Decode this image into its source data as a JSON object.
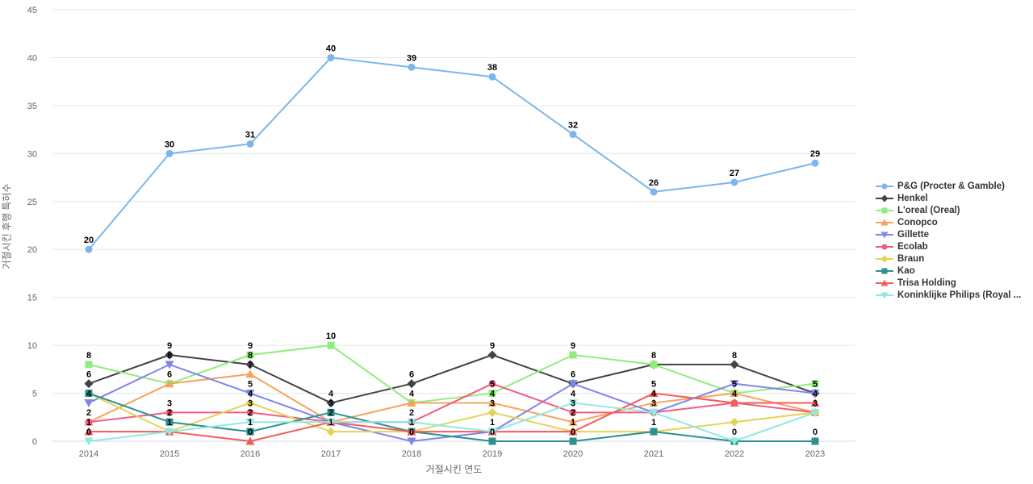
{
  "chart_data": {
    "type": "line",
    "x": [
      2014,
      2015,
      2016,
      2017,
      2018,
      2019,
      2020,
      2021,
      2022,
      2023
    ],
    "xlabel": "거절시킨 연도",
    "ylabel": "거절시킨 후행 특허수",
    "ylim": [
      0,
      45
    ],
    "ytick_step": 5,
    "grid": "horizontal",
    "legend_position": "right-middle",
    "background_color": "#ffffff",
    "gridline_color": "#e6e6e6",
    "axis_line_color": "#ccd6eb",
    "axis_text_color": "#666666",
    "data_label_color": "#000000",
    "series": [
      {
        "name": "P&G (Procter & Gamble)",
        "color": "#7cb5ec",
        "marker": "circle",
        "values": [
          20,
          30,
          31,
          40,
          39,
          38,
          32,
          26,
          27,
          29
        ]
      },
      {
        "name": "Henkel",
        "color": "#434348",
        "marker": "diamond",
        "values": [
          6,
          9,
          8,
          4,
          6,
          9,
          6,
          8,
          8,
          5
        ]
      },
      {
        "name": "L'oreal (Oreal)",
        "color": "#90ed7d",
        "marker": "square",
        "values": [
          8,
          6,
          9,
          10,
          4,
          5,
          9,
          8,
          5,
          6
        ]
      },
      {
        "name": "Conopco",
        "color": "#f7a35c",
        "marker": "triangle",
        "values": [
          2,
          6,
          7,
          2,
          4,
          4,
          2,
          4,
          5,
          3
        ]
      },
      {
        "name": "Gillette",
        "color": "#8085e9",
        "marker": "triangle-down",
        "values": [
          4,
          8,
          5,
          2,
          0,
          1,
          6,
          3,
          6,
          5
        ]
      },
      {
        "name": "Ecolab",
        "color": "#f15c80",
        "marker": "circle",
        "values": [
          2,
          3,
          3,
          2,
          2,
          6,
          3,
          3,
          4,
          3
        ]
      },
      {
        "name": "Braun",
        "color": "#e4d354",
        "marker": "diamond",
        "values": [
          5,
          1,
          4,
          1,
          1,
          3,
          1,
          1,
          2,
          3
        ]
      },
      {
        "name": "Kao",
        "color": "#2b908f",
        "marker": "square",
        "values": [
          5,
          2,
          1,
          3,
          1,
          0,
          0,
          1,
          0,
          0
        ]
      },
      {
        "name": "Trisa Holding",
        "color": "#f45b5b",
        "marker": "triangle",
        "values": [
          1,
          1,
          0,
          2,
          1,
          1,
          1,
          5,
          4,
          4
        ]
      },
      {
        "name": "Koninklijke Philips (Royal ...",
        "color": "#91e8e1",
        "marker": "triangle-down",
        "values": [
          0,
          1,
          2,
          2,
          2,
          1,
          4,
          3,
          0,
          3
        ]
      }
    ],
    "hidden_labels": [
      {
        "series": "Braun",
        "year": 2014
      },
      {
        "series": "Kao",
        "year": 2014
      },
      {
        "series": "Ecolab",
        "year": 2019
      },
      {
        "series": "Gillette",
        "year": 2022
      },
      {
        "series": "Braun",
        "year": 2022
      },
      {
        "series": "L'oreal (Oreal)",
        "year": 2023
      }
    ]
  }
}
